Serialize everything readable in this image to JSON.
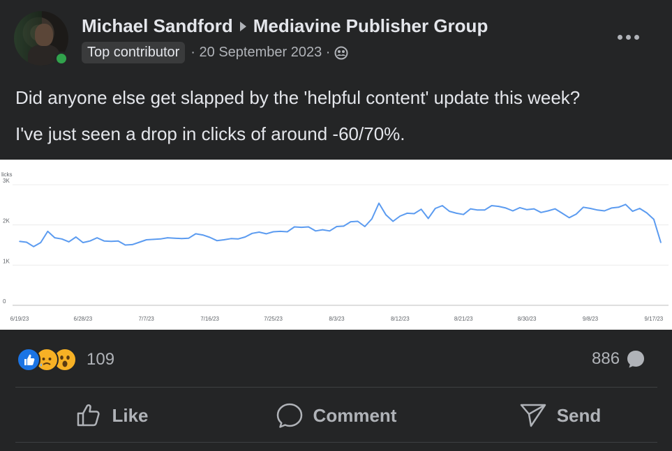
{
  "post": {
    "author": "Michael Sandford",
    "group": "Mediavine Publisher Group",
    "badge": "Top contributor",
    "date": "· 20 September 2023 ·",
    "audience_icon": "group-audience-icon",
    "more_icon": "more-options-icon",
    "text_line1": "Did anyone else get slapped by the 'helpful content' update this week?",
    "text_line2": "I've just seen a drop in clicks of around -60/70%."
  },
  "chart_data": {
    "type": "line",
    "ylabel": "licks",
    "y_ticks": [
      "0",
      "1K",
      "2K",
      "3K"
    ],
    "ylim": [
      0,
      3000
    ],
    "x_tick_labels": [
      "6/19/23",
      "6/28/23",
      "7/7/23",
      "7/16/23",
      "7/25/23",
      "8/3/23",
      "8/12/23",
      "8/21/23",
      "8/30/23",
      "9/8/23",
      "9/17/23"
    ],
    "grid": true,
    "color": "#5b9bf0",
    "x": [
      "6/19/23",
      "6/20/23",
      "6/21/23",
      "6/22/23",
      "6/23/23",
      "6/24/23",
      "6/25/23",
      "6/26/23",
      "6/27/23",
      "6/28/23",
      "6/29/23",
      "6/30/23",
      "7/1/23",
      "7/2/23",
      "7/3/23",
      "7/4/23",
      "7/5/23",
      "7/6/23",
      "7/7/23",
      "7/8/23",
      "7/9/23",
      "7/10/23",
      "7/11/23",
      "7/12/23",
      "7/13/23",
      "7/14/23",
      "7/15/23",
      "7/16/23",
      "7/17/23",
      "7/18/23",
      "7/19/23",
      "7/20/23",
      "7/21/23",
      "7/22/23",
      "7/23/23",
      "7/24/23",
      "7/25/23",
      "7/26/23",
      "7/27/23",
      "7/28/23",
      "7/29/23",
      "7/30/23",
      "7/31/23",
      "8/1/23",
      "8/2/23",
      "8/3/23",
      "8/4/23",
      "8/5/23",
      "8/6/23",
      "8/7/23",
      "8/8/23",
      "8/9/23",
      "8/10/23",
      "8/11/23",
      "8/12/23",
      "8/13/23",
      "8/14/23",
      "8/15/23",
      "8/16/23",
      "8/17/23",
      "8/18/23",
      "8/19/23",
      "8/20/23",
      "8/21/23",
      "8/22/23",
      "8/23/23",
      "8/24/23",
      "8/25/23",
      "8/26/23",
      "8/27/23",
      "8/28/23",
      "8/29/23",
      "8/30/23",
      "8/31/23",
      "9/1/23",
      "9/2/23",
      "9/3/23",
      "9/4/23",
      "9/5/23",
      "9/6/23",
      "9/7/23",
      "9/8/23",
      "9/9/23",
      "9/10/23",
      "9/11/23",
      "9/12/23",
      "9/13/23",
      "9/14/23",
      "9/15/23",
      "9/16/23",
      "9/17/23",
      "9/18/23"
    ],
    "values": [
      1590,
      1570,
      1460,
      1560,
      1840,
      1680,
      1650,
      1580,
      1700,
      1560,
      1600,
      1680,
      1600,
      1590,
      1600,
      1500,
      1510,
      1570,
      1630,
      1640,
      1650,
      1680,
      1670,
      1660,
      1670,
      1780,
      1750,
      1690,
      1610,
      1630,
      1660,
      1650,
      1700,
      1790,
      1820,
      1780,
      1830,
      1840,
      1830,
      1950,
      1940,
      1950,
      1850,
      1880,
      1850,
      1960,
      1970,
      2080,
      2090,
      1960,
      2150,
      2540,
      2250,
      2090,
      2220,
      2290,
      2280,
      2390,
      2160,
      2410,
      2480,
      2340,
      2290,
      2260,
      2400,
      2370,
      2370,
      2480,
      2460,
      2420,
      2350,
      2430,
      2380,
      2400,
      2310,
      2350,
      2400,
      2290,
      2180,
      2270,
      2440,
      2410,
      2370,
      2350,
      2420,
      2440,
      2510,
      2340,
      2410,
      2300,
      2140,
      1560
    ]
  },
  "reactions": {
    "icons": [
      "like-reaction-icon",
      "sad-reaction-icon",
      "wow-reaction-icon"
    ],
    "count": "109"
  },
  "comments": {
    "count": "886"
  },
  "actions": {
    "like": "Like",
    "comment": "Comment",
    "send": "Send"
  }
}
